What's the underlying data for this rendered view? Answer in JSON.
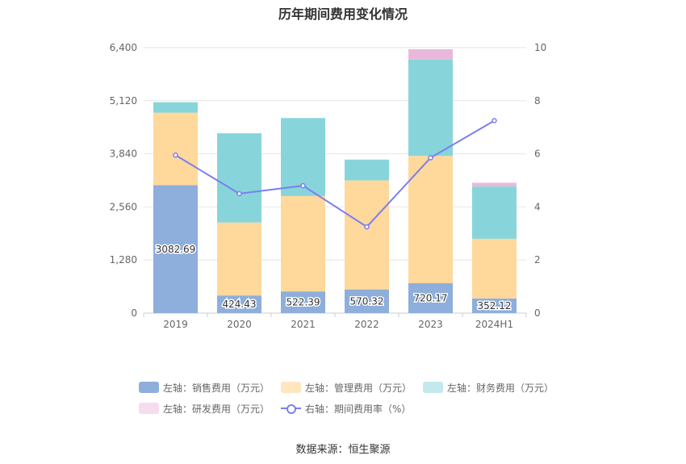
{
  "title": "历年期间费用变化情况",
  "source": "数据来源：恒生聚源",
  "chart_data": {
    "type": "bar",
    "stacked": true,
    "categories": [
      "2019",
      "2020",
      "2021",
      "2022",
      "2023",
      "2024H1"
    ],
    "left_axis": {
      "ylim": [
        0,
        6400
      ],
      "ticks": [
        "0",
        "1,280",
        "2,560",
        "3,840",
        "5,120",
        "6,400"
      ]
    },
    "right_axis": {
      "ylim": [
        0,
        10
      ],
      "ticks": [
        "0",
        "2",
        "4",
        "6",
        "8",
        "10"
      ]
    },
    "series": [
      {
        "name": "左轴：销售费用（万元）",
        "type": "bar",
        "color": "#8eaedb",
        "legend_color": "#8eaedb",
        "values": [
          3082.69,
          424.43,
          522.39,
          570.32,
          720.17,
          352.12
        ],
        "labels": [
          "3082.69",
          "424.43",
          "522.39",
          "570.32",
          "720.17",
          "352.12"
        ]
      },
      {
        "name": "左轴：管理费用（万元）",
        "type": "bar",
        "color": "#ffd89b",
        "legend_color": "#ffe6bf",
        "values": [
          1750,
          1760,
          2300,
          2630,
          3070,
          1440
        ]
      },
      {
        "name": "左轴：财务费用（万元）",
        "type": "bar",
        "color": "#87d5da",
        "legend_color": "#c2e9ec",
        "values": [
          250,
          2150,
          1880,
          500,
          2320,
          1260
        ]
      },
      {
        "name": "左轴：研发费用（万元）",
        "type": "bar",
        "color": "#e9b9db",
        "legend_color": "#f6dcee",
        "values": [
          0,
          0,
          0,
          0,
          250,
          90
        ]
      },
      {
        "name": "右轴：期间费用率（%）",
        "type": "line",
        "axis": "right",
        "color": "#7b7ff0",
        "values": [
          5.95,
          4.5,
          4.8,
          3.25,
          5.85,
          7.25
        ]
      }
    ],
    "grid": true,
    "legend_position": "bottom"
  }
}
